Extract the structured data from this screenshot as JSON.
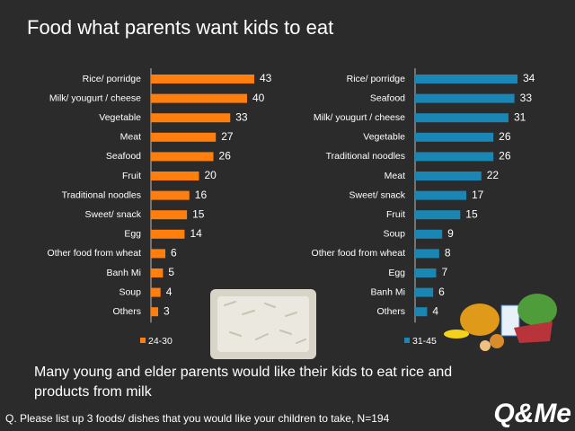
{
  "title": "Food what parents want kids to eat",
  "note": [
    "Many young and elder parents would like their kids to eat rice and",
    "products from milk"
  ],
  "footnote": "Q. Please list up 3 foods/ dishes that you would like your children to take, N=194",
  "logo": "Q&Me",
  "chart_data": [
    {
      "type": "bar",
      "orientation": "horizontal",
      "categories": [
        "Rice/ porridge",
        "Milk/ yougurt / cheese",
        "Vegetable",
        "Meat",
        "Seafood",
        "Fruit",
        "Traditional noodles",
        "Sweet/ snack",
        "Egg",
        "Other food from wheat",
        "Banh Mi",
        "Soup",
        "Others"
      ],
      "series": [
        {
          "name": "24-30",
          "color": "#ff7f0e",
          "values": [
            43,
            40,
            33,
            27,
            26,
            20,
            16,
            15,
            14,
            6,
            5,
            4,
            3
          ]
        }
      ]
    },
    {
      "type": "bar",
      "orientation": "horizontal",
      "categories": [
        "Rice/ porridge",
        "Seafood",
        "Milk/ yougurt / cheese",
        "Vegetable",
        "Traditional noodles",
        "Meat",
        "Sweet/ snack",
        "Fruit",
        "Soup",
        "Other food from wheat",
        "Egg",
        "Banh Mi",
        "Others"
      ],
      "series": [
        {
          "name": "31-45",
          "color": "#1a86b4",
          "values": [
            34,
            33,
            31,
            26,
            26,
            22,
            17,
            15,
            9,
            8,
            7,
            6,
            4
          ]
        }
      ]
    }
  ]
}
